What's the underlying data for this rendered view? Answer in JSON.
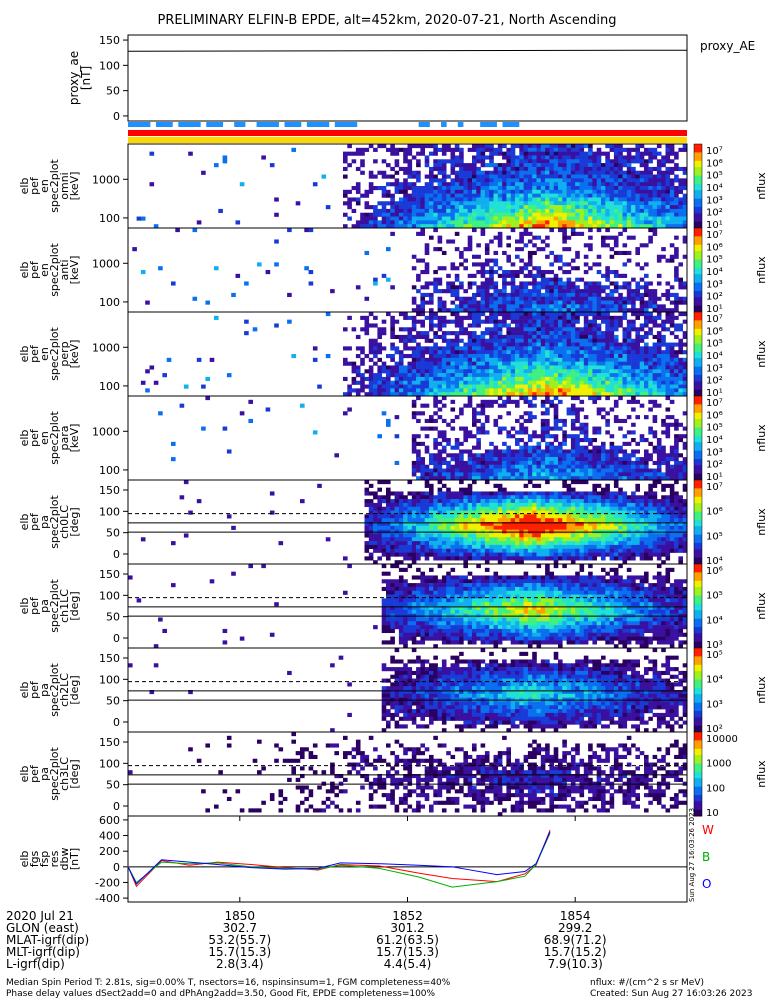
{
  "title": "PRELIMINARY ELFIN-B EPDE, alt=452km, 2020-07-21, North Ascending",
  "proxy_ae": {
    "ylabel": "proxy_ae\n[nT]",
    "right_label": "proxy_AE",
    "yticks": [
      "150",
      "100",
      "50",
      "0"
    ],
    "ylim": [
      -10,
      160
    ],
    "value": 128
  },
  "panels": [
    {
      "ylabel": "elb\npef\nen\nspec2plot\nomni\n[keV]",
      "yticks": [
        "1000",
        "100"
      ],
      "kind": "energy",
      "intensity": 1.0,
      "start": 0.38
    },
    {
      "ylabel": "elb\npef\nen\nspec2plot\nanti\n[keV]",
      "yticks": [
        "1000",
        "100"
      ],
      "kind": "energy",
      "intensity": 0.35,
      "start": 0.5
    },
    {
      "ylabel": "elb\npef\nen\nspec2plot\nperp\n[keV]",
      "yticks": [
        "1000",
        "100"
      ],
      "kind": "energy",
      "intensity": 1.0,
      "start": 0.38
    },
    {
      "ylabel": "elb\npef\nen\nspec2plot\npara\n[keV]",
      "yticks": [
        "1000",
        "100"
      ],
      "kind": "energy",
      "intensity": 0.45,
      "start": 0.5
    },
    {
      "ylabel": "elb\npef\npa\nspec2plot\nch0LC\n[deg]",
      "yticks": [
        "150",
        "100",
        "50",
        "0"
      ],
      "kind": "pa",
      "intensity": 1.0,
      "start": 0.42
    },
    {
      "ylabel": "elb\npef\npa\nspec2plot\nch1LC\n[deg]",
      "yticks": [
        "150",
        "100",
        "50",
        "0"
      ],
      "kind": "pa",
      "intensity": 0.7,
      "start": 0.45
    },
    {
      "ylabel": "elb\npef\npa\nspec2plot\nch2LC\n[deg]",
      "yticks": [
        "150",
        "100",
        "50",
        "0"
      ],
      "kind": "pa",
      "intensity": 0.45,
      "start": 0.45
    },
    {
      "ylabel": "elb\npef\npa\nspec2plot\nch3LC\n[deg]",
      "yticks": [
        "150",
        "100",
        "50",
        "0"
      ],
      "kind": "pa",
      "intensity": 0.15,
      "start": 0.1
    }
  ],
  "colorbars": [
    {
      "label": "nflux",
      "ticks": [
        "10⁷",
        "10⁶",
        "10⁵",
        "10⁴",
        "10³",
        "10²",
        "10¹"
      ]
    },
    {
      "label": "nflux",
      "ticks": [
        "10⁷",
        "10⁶",
        "10⁵",
        "10⁴",
        "10³",
        "10²",
        "10¹"
      ]
    },
    {
      "label": "nflux",
      "ticks": [
        "10⁷",
        "10⁶",
        "10⁵",
        "10⁴",
        "10³",
        "10²",
        "10¹"
      ]
    },
    {
      "label": "nflux",
      "ticks": [
        "10⁷",
        "10⁶",
        "10⁵",
        "10⁴",
        "10³",
        "10²",
        "10¹"
      ]
    },
    {
      "label": "nflux",
      "ticks": [
        "10⁷",
        "10⁶",
        "10⁵",
        "10⁴"
      ]
    },
    {
      "label": "nflux",
      "ticks": [
        "10⁶",
        "10⁵",
        "10⁴",
        "10³"
      ]
    },
    {
      "label": "nflux",
      "ticks": [
        "10⁵",
        "10⁴",
        "10³",
        "10²"
      ]
    },
    {
      "label": "nflux",
      "ticks": [
        "10000",
        "1000",
        "100",
        "10"
      ]
    }
  ],
  "bfield": {
    "ylabel": "elb\nfgs\nfsp\nres\ndbw\n[nT]",
    "yticks": [
      "600",
      "400",
      "200",
      "0",
      "-200",
      "-400"
    ],
    "ylim": [
      -450,
      650
    ],
    "components": [
      {
        "name": "W",
        "color": "#ff0000"
      },
      {
        "name": "B",
        "color": "#00b000"
      },
      {
        "name": "O",
        "color": "#0000ff"
      }
    ],
    "series": [
      {
        "name": "red",
        "color": "#ff0000",
        "x": [
          0,
          0.015,
          0.06,
          0.11,
          0.16,
          0.22,
          0.28,
          0.34,
          0.38,
          0.45,
          0.52,
          0.58,
          0.66,
          0.71,
          0.73,
          0.755
        ],
        "y": [
          10,
          -250,
          80,
          20,
          60,
          30,
          -10,
          -40,
          30,
          10,
          -80,
          -150,
          -190,
          -90,
          20,
          470
        ]
      },
      {
        "name": "green",
        "color": "#00b000",
        "x": [
          0,
          0.015,
          0.06,
          0.11,
          0.16,
          0.22,
          0.28,
          0.34,
          0.38,
          0.45,
          0.52,
          0.58,
          0.66,
          0.71,
          0.73,
          0.755
        ],
        "y": [
          5,
          -200,
          60,
          40,
          50,
          0,
          -20,
          -30,
          20,
          -20,
          -130,
          -260,
          -190,
          -120,
          30,
          430
        ]
      },
      {
        "name": "blue",
        "color": "#0000ff",
        "x": [
          0,
          0.015,
          0.06,
          0.11,
          0.16,
          0.22,
          0.28,
          0.34,
          0.38,
          0.45,
          0.52,
          0.58,
          0.66,
          0.71,
          0.73,
          0.755
        ],
        "y": [
          0,
          -220,
          90,
          60,
          30,
          -10,
          -30,
          -20,
          50,
          40,
          20,
          0,
          -100,
          -60,
          40,
          450
        ]
      }
    ],
    "timestamp": "Sun Aug 27 16:03:26 2023"
  },
  "time_axis": {
    "ticks": [
      "1850",
      "1852",
      "1854"
    ],
    "positions": [
      0.2,
      0.5,
      0.8
    ]
  },
  "ephemeris": {
    "labels": [
      "2020 Jul 21",
      "GLON (east)",
      "MLAT-igrf(dip)",
      "MLT-igrf(dip)",
      "L-igrf(dip)"
    ],
    "columns": [
      [
        "",
        "302.7",
        "53.2(55.7)",
        "15.7(15.3)",
        "2.8(3.4)"
      ],
      [
        "",
        "301.2",
        "61.2(63.5)",
        "15.7(15.3)",
        "4.4(5.4)"
      ],
      [
        "",
        "299.2",
        "68.9(71.2)",
        "15.7(15.2)",
        "7.9(10.3)"
      ]
    ]
  },
  "footer": {
    "line1": "Median Spin Period T: 2.81s, sig=0.00% T, nsectors=16, nspinsinsum=1, FGM completeness=40%",
    "line2": "Phase delay values dSect2add=0 and dPhAng2add=3.50, Good Fit, EPDE completeness=100%",
    "units": "nflux: #/(cm^2 s sr MeV)",
    "created": "Created: Sun Aug 27 16:03:26 2023"
  }
}
